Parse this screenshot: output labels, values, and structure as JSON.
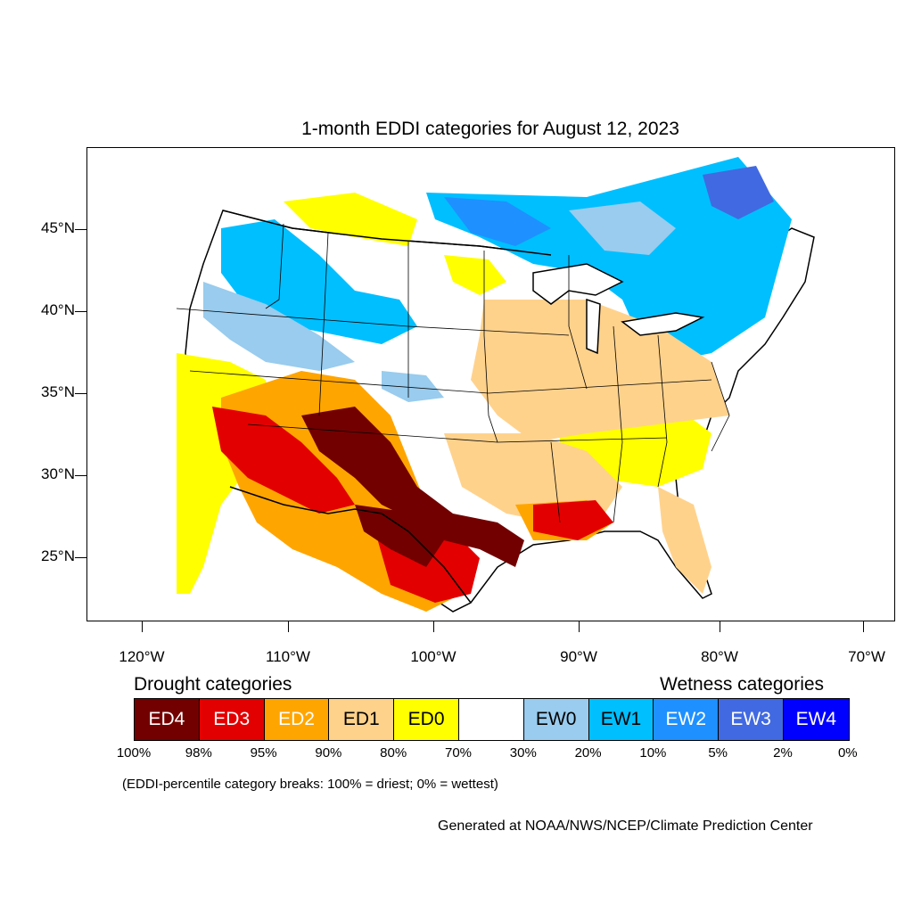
{
  "title": "1-month EDDI categories for August 12, 2023",
  "lat_labels": [
    "45°N",
    "40°N",
    "35°N",
    "30°N",
    "25°N"
  ],
  "lon_labels": [
    "120°W",
    "110°W",
    "100°W",
    "90°W",
    "80°W",
    "70°W"
  ],
  "legend": {
    "drought_heading": "Drought categories",
    "wetness_heading": "Wetness categories",
    "categories": [
      {
        "label": "ED4",
        "color": "#720000",
        "text_color": "#ffffff"
      },
      {
        "label": "ED3",
        "color": "#e30000",
        "text_color": "#ffffff"
      },
      {
        "label": "ED2",
        "color": "#ffa500",
        "text_color": "#ffffff"
      },
      {
        "label": "ED1",
        "color": "#ffd28c",
        "text_color": "#000000"
      },
      {
        "label": "ED0",
        "color": "#ffff00",
        "text_color": "#000000"
      },
      {
        "label": "",
        "color": "#ffffff",
        "text_color": "#000000"
      },
      {
        "label": "EW0",
        "color": "#99ccee",
        "text_color": "#000000"
      },
      {
        "label": "EW1",
        "color": "#00bfff",
        "text_color": "#000000"
      },
      {
        "label": "EW2",
        "color": "#1e90ff",
        "text_color": "#ffffff"
      },
      {
        "label": "EW3",
        "color": "#4169e1",
        "text_color": "#ffffff"
      },
      {
        "label": "EW4",
        "color": "#0000ff",
        "text_color": "#ffffff"
      }
    ],
    "percentiles": [
      "100%",
      "98%",
      "95%",
      "90%",
      "80%",
      "70%",
      "30%",
      "20%",
      "10%",
      "5%",
      "2%",
      "0%"
    ]
  },
  "note": "(EDDI-percentile category breaks: 100% = driest; 0% = wettest)",
  "credit": "Generated at NOAA/NWS/NCEP/Climate Prediction Center",
  "map_colors": {
    "ED4": "#720000",
    "ED3": "#e30000",
    "ED2": "#ffa500",
    "ED1": "#ffd28c",
    "ED0": "#ffff00",
    "EW0": "#99ccee",
    "EW1": "#00bfff",
    "EW2": "#1e90ff",
    "EW3": "#4169e1",
    "EW4": "#0000ff"
  }
}
